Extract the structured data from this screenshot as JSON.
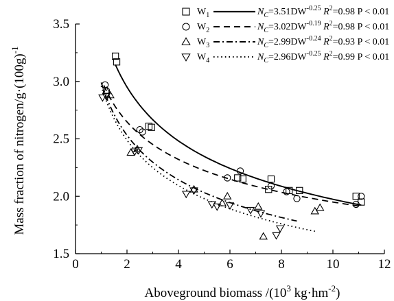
{
  "chart_data": {
    "type": "scatter",
    "title": "",
    "xlabel_parts": {
      "main": "Aboveground biomass /(10",
      "sup1": "3",
      "mid": " kg·hm",
      "sup2": "-2",
      "end": ")"
    },
    "ylabel_parts": {
      "main": "Mass fraction of nitrogen/g·(100g)",
      "sup": "-1"
    },
    "xlim": [
      0,
      12
    ],
    "ylim": [
      1.5,
      3.5
    ],
    "x_ticks": [
      "0",
      "2",
      "4",
      "6",
      "8",
      "10",
      "12"
    ],
    "y_ticks": [
      "1.5",
      "2.0",
      "2.5",
      "3.0",
      "3.5"
    ],
    "grid": false,
    "legend_position": "top-right",
    "series": [
      {
        "name": "W1",
        "sub": "1",
        "marker": "square",
        "line": "solid",
        "eq_a": "3.51",
        "eq_b": "-0.25",
        "r2": "0.98",
        "a": 3.51,
        "b": -0.25,
        "fit_range": [
          1.55,
          11.1
        ],
        "x": [
          1.55,
          1.6,
          2.85,
          2.95,
          6.3,
          6.5,
          7.5,
          7.6,
          8.3,
          8.7,
          10.9,
          11.1
        ],
        "y": [
          3.22,
          3.17,
          2.61,
          2.6,
          2.16,
          2.15,
          2.06,
          2.15,
          2.05,
          2.05,
          2.0,
          1.95
        ]
      },
      {
        "name": "W2",
        "sub": "2",
        "marker": "circle",
        "line": "dashed",
        "eq_a": "3.02",
        "eq_b": "-0.19",
        "r2": "0.98",
        "a": 3.02,
        "b": -0.19,
        "fit_range": [
          1.1,
          11.1
        ],
        "x": [
          1.15,
          1.2,
          2.5,
          2.6,
          5.9,
          6.4,
          7.6,
          8.2,
          8.6,
          10.9,
          11.1
        ],
        "y": [
          2.97,
          2.92,
          2.58,
          2.56,
          2.16,
          2.22,
          2.09,
          2.04,
          1.98,
          1.93,
          2.0
        ]
      },
      {
        "name": "W3",
        "sub": "3",
        "marker": "triangle-up",
        "line": "dashdot",
        "eq_a": "2.99",
        "eq_b": "-0.24",
        "r2": "0.93",
        "a": 2.99,
        "b": -0.24,
        "fit_range": [
          1.0,
          8.6
        ],
        "x": [
          1.2,
          1.35,
          2.15,
          2.4,
          4.6,
          5.7,
          5.9,
          7.1,
          7.3,
          9.3,
          9.5
        ],
        "y": [
          2.92,
          2.88,
          2.38,
          2.41,
          2.06,
          1.94,
          2.0,
          1.91,
          1.65,
          1.87,
          1.9
        ]
      },
      {
        "name": "W4",
        "sub": "4",
        "marker": "triangle-down",
        "line": "dotted",
        "eq_a": "2.96",
        "eq_b": "-0.25",
        "r2": "0.99",
        "a": 2.96,
        "b": -0.25,
        "fit_range": [
          1.0,
          9.3
        ],
        "x": [
          1.05,
          1.2,
          2.3,
          2.45,
          4.3,
          4.6,
          5.3,
          5.5,
          6.0,
          6.8,
          7.2,
          7.8,
          7.95
        ],
        "y": [
          2.86,
          2.87,
          2.39,
          2.4,
          2.02,
          2.05,
          1.93,
          1.91,
          1.92,
          1.88,
          1.85,
          1.66,
          1.72
        ]
      }
    ],
    "legend_common": {
      "lhs": "N",
      "lhs_sub": "C",
      "eq_mid": "DW",
      "r_label": "R",
      "r_sup": "2",
      "p_prefix": "P",
      "p_value": "0.01"
    }
  }
}
